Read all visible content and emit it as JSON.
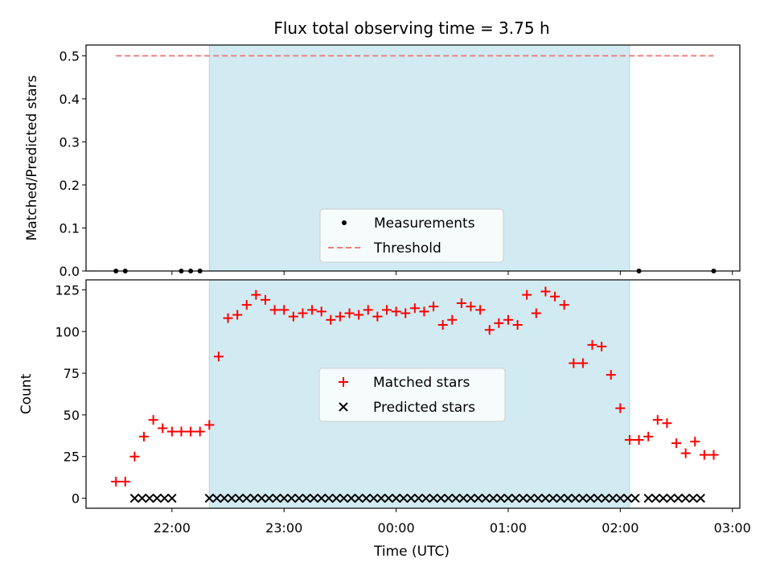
{
  "chart_data": {
    "title": "Flux total observing time = 3.75 h",
    "xlabel": "Time (UTC)",
    "x_unit": "minutes after 22:00 UTC",
    "xlim": [
      -46,
      304
    ],
    "xticks": [
      0,
      60,
      120,
      180,
      240,
      300
    ],
    "xtick_labels": [
      "22:00",
      "23:00",
      "00:00",
      "01:00",
      "02:00",
      "03:00"
    ],
    "shaded_span": [
      20,
      245
    ],
    "shade_color": "#add8e6",
    "panels": [
      {
        "type": "scatter",
        "ylabel": "Matched/Predicted stars",
        "ylim": [
          0,
          0.525
        ],
        "yticks": [
          0,
          0.1,
          0.2,
          0.3,
          0.4,
          0.5
        ],
        "ytick_labels": [
          "0.0",
          "0.1",
          "0.2",
          "0.3",
          "0.4",
          "0.5"
        ],
        "legend_position": "lower center",
        "series": [
          {
            "name": "Measurements",
            "marker": "dot",
            "color": "#000000",
            "x": [
              -30,
              -25,
              5,
              10,
              15,
              250,
              290
            ],
            "y": [
              0,
              0,
              0,
              0,
              0,
              0,
              0
            ]
          },
          {
            "name": "Threshold",
            "kind": "line",
            "linestyle": "dashed",
            "color": "#f08080",
            "x": [
              -30,
              290
            ],
            "y": [
              0.5,
              0.5
            ]
          }
        ]
      },
      {
        "type": "scatter",
        "ylabel": "Count",
        "ylim": [
          -6,
          131
        ],
        "yticks": [
          0,
          25,
          50,
          75,
          100,
          125
        ],
        "ytick_labels": [
          "0",
          "25",
          "50",
          "75",
          "100",
          "125"
        ],
        "legend_position": "center",
        "series": [
          {
            "name": "Matched stars",
            "marker": "plus",
            "color": "#ff0000",
            "x": [
              -30,
              -25,
              -20,
              -15,
              -10,
              -5,
              0,
              5,
              10,
              15,
              20,
              25,
              30,
              35,
              40,
              45,
              50,
              55,
              60,
              65,
              70,
              75,
              80,
              85,
              90,
              95,
              100,
              105,
              110,
              115,
              120,
              125,
              130,
              135,
              140,
              145,
              150,
              155,
              160,
              165,
              170,
              175,
              180,
              185,
              190,
              195,
              200,
              205,
              210,
              215,
              220,
              225,
              230,
              235,
              240,
              245,
              250,
              255,
              260,
              265,
              270,
              275,
              280,
              285,
              290
            ],
            "y": [
              10,
              10,
              25,
              37,
              47,
              42,
              40,
              40,
              40,
              40,
              44,
              85,
              108,
              110,
              116,
              122,
              119,
              113,
              113,
              109,
              111,
              113,
              112,
              107,
              109,
              111,
              110,
              113,
              109,
              113,
              112,
              111,
              114,
              112,
              115,
              104,
              107,
              117,
              115,
              113,
              101,
              105,
              107,
              104,
              122,
              111,
              124,
              121,
              116,
              81,
              81,
              92,
              91,
              74,
              54,
              35,
              35,
              37,
              47,
              45,
              33,
              27,
              34,
              26,
              26
            ]
          },
          {
            "name": "Predicted stars",
            "marker": "x",
            "color": "#000000",
            "x": [
              -20,
              -16,
              -12,
              -8,
              -4,
              0,
              20,
              24,
              28,
              32,
              36,
              40,
              44,
              48,
              52,
              56,
              60,
              64,
              68,
              72,
              76,
              80,
              84,
              88,
              92,
              96,
              100,
              104,
              108,
              112,
              116,
              120,
              124,
              128,
              132,
              136,
              140,
              144,
              148,
              152,
              156,
              160,
              164,
              168,
              172,
              176,
              180,
              184,
              188,
              192,
              196,
              200,
              204,
              208,
              212,
              216,
              220,
              224,
              228,
              232,
              236,
              240,
              244,
              248,
              255,
              259,
              263,
              267,
              271,
              275,
              279,
              283
            ],
            "y": [
              0,
              0,
              0,
              0,
              0,
              0,
              0,
              0,
              0,
              0,
              0,
              0,
              0,
              0,
              0,
              0,
              0,
              0,
              0,
              0,
              0,
              0,
              0,
              0,
              0,
              0,
              0,
              0,
              0,
              0,
              0,
              0,
              0,
              0,
              0,
              0,
              0,
              0,
              0,
              0,
              0,
              0,
              0,
              0,
              0,
              0,
              0,
              0,
              0,
              0,
              0,
              0,
              0,
              0,
              0,
              0,
              0,
              0,
              0,
              0,
              0,
              0,
              0,
              0,
              0,
              0,
              0,
              0,
              0,
              0,
              0,
              0
            ]
          }
        ]
      }
    ]
  }
}
